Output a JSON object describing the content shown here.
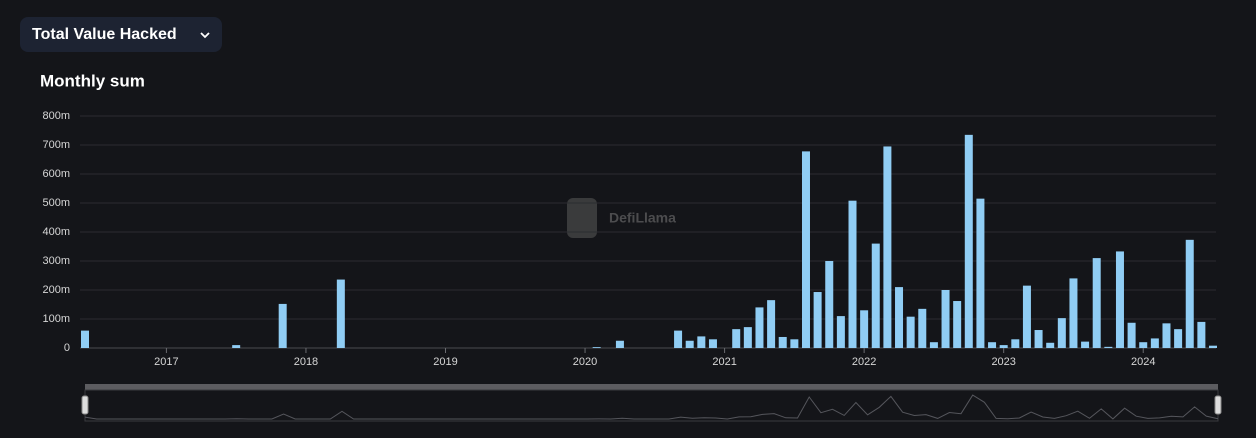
{
  "header": {
    "dropdown": "Total Value Hacked"
  },
  "chart_data": {
    "type": "bar",
    "title": "Monthly sum",
    "watermark": "DefiLlama",
    "categories": [
      null,
      null,
      null,
      null,
      null,
      null,
      null,
      "2017",
      null,
      null,
      null,
      null,
      null,
      null,
      null,
      null,
      null,
      null,
      null,
      "2018",
      null,
      null,
      null,
      null,
      null,
      null,
      null,
      null,
      null,
      null,
      null,
      "2019",
      null,
      null,
      null,
      null,
      null,
      null,
      null,
      null,
      null,
      null,
      null,
      "2020",
      null,
      null,
      null,
      null,
      null,
      null,
      null,
      null,
      null,
      null,
      null,
      "2021",
      null,
      null,
      null,
      null,
      null,
      null,
      null,
      null,
      null,
      null,
      null,
      "2022",
      null,
      null,
      null,
      null,
      null,
      null,
      null,
      null,
      null,
      null,
      null,
      "2023",
      null,
      null,
      null,
      null,
      null,
      null,
      null,
      null,
      null,
      null,
      null,
      "2024",
      null,
      null,
      null,
      null,
      null,
      null
    ],
    "values": [
      60,
      0,
      0,
      0,
      0,
      0,
      0,
      0,
      0,
      0,
      0,
      0,
      0,
      10,
      0,
      0,
      0,
      152,
      0,
      0,
      0,
      0,
      236,
      0,
      0,
      0,
      0,
      0,
      0,
      0,
      0,
      0,
      0,
      0,
      0,
      0,
      0,
      0,
      0,
      0,
      0,
      0,
      0,
      0,
      3,
      0,
      25,
      0,
      0,
      0,
      0,
      60,
      25,
      40,
      30,
      0,
      65,
      72,
      140,
      165,
      38,
      30,
      678,
      193,
      300,
      110,
      508,
      130,
      360,
      695,
      210,
      108,
      135,
      20,
      200,
      162,
      735,
      515,
      20,
      10,
      30,
      215,
      62,
      18,
      103,
      240,
      22,
      310,
      4,
      333,
      87,
      20,
      33,
      85,
      65,
      373,
      90,
      8
    ],
    "color": "#90cdf4",
    "ylim": [
      0,
      800
    ],
    "yticks": [
      0,
      {
        "value": 100,
        "label": "100m"
      },
      {
        "value": 200,
        "label": "200m"
      },
      {
        "value": 300,
        "label": "300m"
      },
      {
        "value": 400,
        "label": "400m"
      },
      {
        "value": 500,
        "label": "500m"
      },
      {
        "value": 600,
        "label": "600m"
      },
      {
        "value": 700,
        "label": "700m"
      },
      {
        "value": 800,
        "label": "800m"
      }
    ],
    "grid": true
  }
}
